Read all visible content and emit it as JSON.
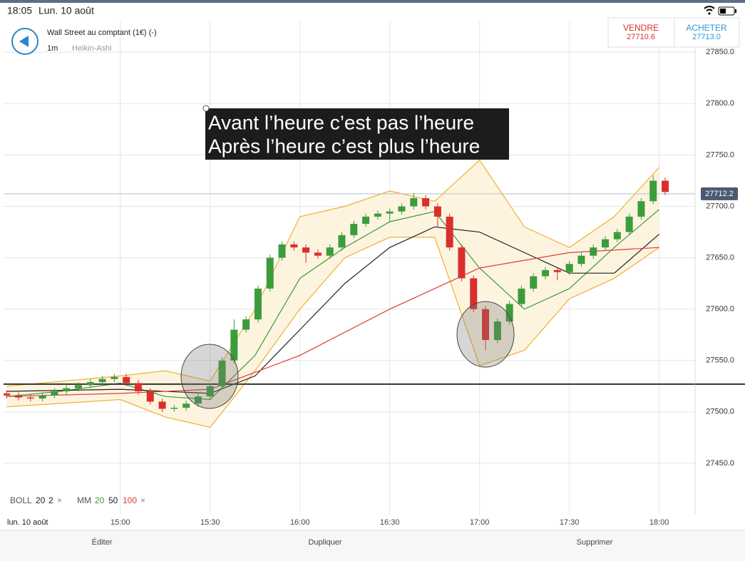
{
  "status_bar": {
    "time": "18:05",
    "date": "Lun. 10 août"
  },
  "header": {
    "title": "Wall Street au comptant (1€) (-)",
    "timeframe": "1m",
    "chart_style": "Heikin-Ashi"
  },
  "quote": {
    "sell_label": "VENDRE",
    "sell_price": "27710.6",
    "buy_label": "ACHETER",
    "buy_price": "27713.0"
  },
  "chart_data": {
    "type": "candlestick",
    "x": [
      862,
      866,
      870,
      874,
      878,
      882,
      886,
      890,
      894,
      898,
      902,
      906,
      910,
      914,
      918,
      922,
      926,
      930,
      934,
      938,
      942,
      946,
      950,
      954,
      958,
      962,
      966,
      970,
      974,
      978,
      982,
      986,
      990,
      994,
      998,
      1002,
      1006,
      1010,
      1014,
      1018,
      1022,
      1026,
      1030,
      1034,
      1038,
      1042,
      1046,
      1050,
      1054,
      1058,
      1062,
      1066,
      1070,
      1074,
      1078,
      1082
    ],
    "open": [
      27518,
      27516,
      27514,
      27513,
      27516,
      27520,
      27523,
      27526,
      27529,
      27532,
      27534,
      27528,
      27520,
      27510,
      27503,
      27504,
      27508,
      27515,
      27525,
      27550,
      27580,
      27590,
      27620,
      27650,
      27663,
      27660,
      27655,
      27652,
      27660,
      27672,
      27683,
      27690,
      27693,
      27695,
      27700,
      27708,
      27700,
      27690,
      27660,
      27630,
      27600,
      27570,
      27588,
      27605,
      27620,
      27632,
      27638,
      27636,
      27644,
      27652,
      27660,
      27668,
      27675,
      27690,
      27705,
      27725
    ],
    "high": [
      27521,
      27519,
      27517,
      27519,
      27523,
      27526,
      27529,
      27532,
      27535,
      27537,
      27537,
      27531,
      27523,
      27513,
      27507,
      27511,
      27518,
      27528,
      27553,
      27590,
      27593,
      27623,
      27653,
      27666,
      27666,
      27663,
      27658,
      27663,
      27675,
      27686,
      27693,
      27696,
      27698,
      27703,
      27713,
      27711,
      27703,
      27693,
      27663,
      27633,
      27603,
      27591,
      27608,
      27623,
      27635,
      27641,
      27641,
      27647,
      27655,
      27663,
      27671,
      27678,
      27693,
      27708,
      27730,
      27728
    ],
    "low": [
      27513,
      27511,
      27510,
      27510,
      27513,
      27517,
      27520,
      27523,
      27526,
      27529,
      27525,
      27517,
      27507,
      27500,
      27500,
      27501,
      27505,
      27512,
      27522,
      27547,
      27577,
      27587,
      27617,
      27647,
      27657,
      27645,
      27649,
      27649,
      27657,
      27669,
      27680,
      27687,
      27685,
      27692,
      27697,
      27697,
      27680,
      27657,
      27627,
      27597,
      27560,
      27567,
      27585,
      27602,
      27617,
      27629,
      27628,
      27633,
      27641,
      27649,
      27657,
      27665,
      27672,
      27687,
      27702,
      27711
    ],
    "close": [
      27516,
      27514,
      27513,
      27516,
      27520,
      27523,
      27526,
      27529,
      27532,
      27534,
      27528,
      27520,
      27510,
      27503,
      27504,
      27508,
      27515,
      27525,
      27550,
      27580,
      27590,
      27620,
      27650,
      27663,
      27660,
      27655,
      27652,
      27660,
      27672,
      27683,
      27690,
      27693,
      27695,
      27700,
      27708,
      27700,
      27690,
      27660,
      27630,
      27600,
      27570,
      27588,
      27605,
      27620,
      27632,
      27638,
      27636,
      27644,
      27652,
      27660,
      27668,
      27675,
      27690,
      27705,
      27725,
      27714
    ],
    "up_color": "#3c9c3c",
    "down_color": "#d9302c",
    "bollinger": {
      "name": "BOLL",
      "params": [
        "20",
        "2"
      ],
      "remove": "×",
      "color": "#f0b030",
      "fill": "#fdf4e0",
      "x": [
        862,
        900,
        915,
        930,
        945,
        960,
        975,
        990,
        1005,
        1020,
        1035,
        1050,
        1065,
        1080
      ],
      "upper": [
        27525,
        27535,
        27540,
        27530,
        27600,
        27690,
        27700,
        27715,
        27705,
        27745,
        27680,
        27660,
        27690,
        27738
      ],
      "lower": [
        27505,
        27512,
        27495,
        27485,
        27540,
        27600,
        27650,
        27670,
        27670,
        27545,
        27560,
        27610,
        27630,
        27660
      ]
    },
    "moving_averages_label": "MM",
    "moving_averages_remove": "×",
    "moving_averages": [
      {
        "period": "20",
        "color": "#3a9a3a",
        "x": [
          862,
          880,
          900,
          915,
          930,
          945,
          960,
          975,
          990,
          1005,
          1020,
          1035,
          1050,
          1065,
          1080
        ],
        "values": [
          27515,
          27520,
          27528,
          27515,
          27512,
          27555,
          27630,
          27660,
          27685,
          27695,
          27640,
          27600,
          27620,
          27660,
          27697
        ]
      },
      {
        "period": "50",
        "color": "#222222",
        "x": [
          862,
          900,
          930,
          945,
          960,
          975,
          990,
          1005,
          1020,
          1035,
          1050,
          1065,
          1080
        ],
        "values": [
          27520,
          27522,
          27518,
          27535,
          27580,
          27625,
          27660,
          27680,
          27675,
          27655,
          27635,
          27635,
          27673
        ]
      },
      {
        "period": "100",
        "color": "#e03c3c",
        "x": [
          862,
          900,
          930,
          960,
          990,
          1020,
          1050,
          1080
        ],
        "values": [
          27515,
          27518,
          27522,
          27555,
          27600,
          27640,
          27655,
          27660
        ]
      }
    ],
    "current_price": {
      "value": 27712.2,
      "label": "27712.2"
    },
    "support_level": 27527,
    "annotation": [
      "Avant l’heure c’est pas l’heure",
      "Après l’heure c’est plus l’heure"
    ],
    "xlim": [
      861,
      1092
    ],
    "ylim": [
      27400,
      27880
    ],
    "xticks": [
      {
        "value": 900,
        "label": "15:00"
      },
      {
        "value": 930,
        "label": "15:30"
      },
      {
        "value": 960,
        "label": "16:00"
      },
      {
        "value": 990,
        "label": "16:30"
      },
      {
        "value": 1020,
        "label": "17:00"
      },
      {
        "value": 1050,
        "label": "17:30"
      },
      {
        "value": 1080,
        "label": "18:00"
      }
    ],
    "yticks": [
      {
        "value": 27450,
        "label": "27450.0"
      },
      {
        "value": 27500,
        "label": "27500.0"
      },
      {
        "value": 27550,
        "label": "27550.0"
      },
      {
        "value": 27600,
        "label": "27600.0"
      },
      {
        "value": 27650,
        "label": "27650.0"
      },
      {
        "value": 27700,
        "label": "27700.0"
      },
      {
        "value": 27750,
        "label": "27750.0"
      },
      {
        "value": 27800,
        "label": "27800.0"
      },
      {
        "value": 27850,
        "label": "27850.0"
      }
    ],
    "grid": true,
    "date_label": "lun. 10 août"
  },
  "toolbar": [
    "Éditer",
    "Dupliquer",
    "Supprimer"
  ]
}
